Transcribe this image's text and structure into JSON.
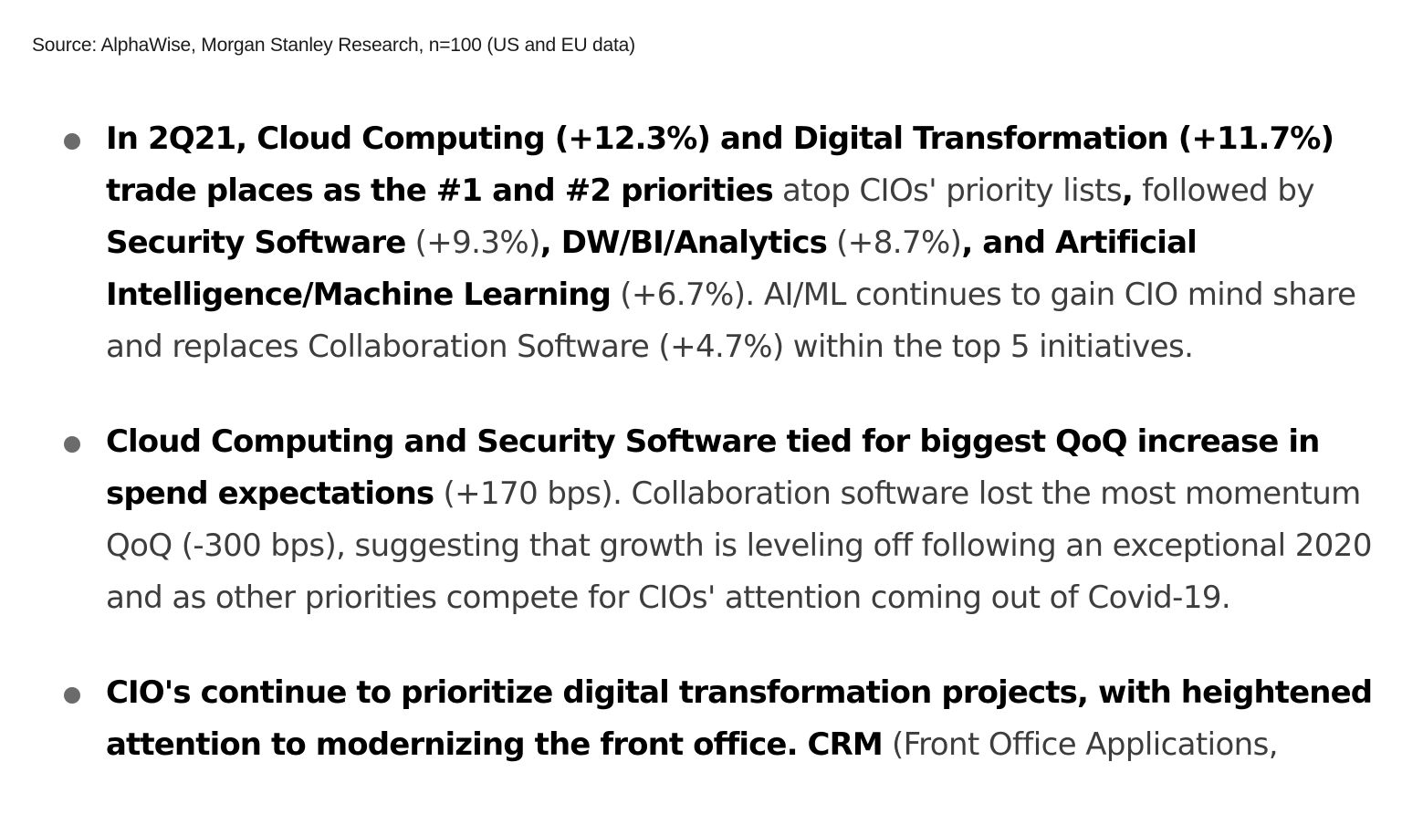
{
  "source": "Source: AlphaWise, Morgan Stanley Research, n=100 (US and EU data)",
  "bullets": [
    {
      "segments": [
        {
          "text": "In 2Q21, Cloud Computing (+12.3%) and Digital Transformation (+11.7%) trade places as the #1 and #2 priorities",
          "bold": true
        },
        {
          "text": " atop CIOs' priority lists",
          "bold": false
        },
        {
          "text": ",",
          "bold": true
        },
        {
          "text": " followed by ",
          "bold": false
        },
        {
          "text": "Security Software",
          "bold": true
        },
        {
          "text": " (+9.3%)",
          "bold": false
        },
        {
          "text": ", DW/BI/Analytics",
          "bold": true
        },
        {
          "text": " (+8.7%)",
          "bold": false
        },
        {
          "text": ", and Artificial Intelligence/Machine Learning",
          "bold": true
        },
        {
          "text": " (+6.7%). AI/ML continues to gain CIO mind share and replaces Collaboration Software (+4.7%) within the top 5 initiatives.",
          "bold": false
        }
      ]
    },
    {
      "segments": [
        {
          "text": "Cloud Computing and Security Software tied for biggest QoQ increase in spend expectations",
          "bold": true
        },
        {
          "text": " (+170 bps). Collaboration software lost the most momentum QoQ (-300 bps), suggesting that growth is leveling off following an exceptional 2020 and as other priorities compete for CIOs' attention coming out of Covid-19.",
          "bold": false
        }
      ]
    },
    {
      "segments": [
        {
          "text": "CIO's continue to prioritize digital transformation projects, with heightened attention to modernizing the front office. CRM",
          "bold": true
        },
        {
          "text": " (Front Office Applications,",
          "bold": false
        }
      ]
    }
  ]
}
